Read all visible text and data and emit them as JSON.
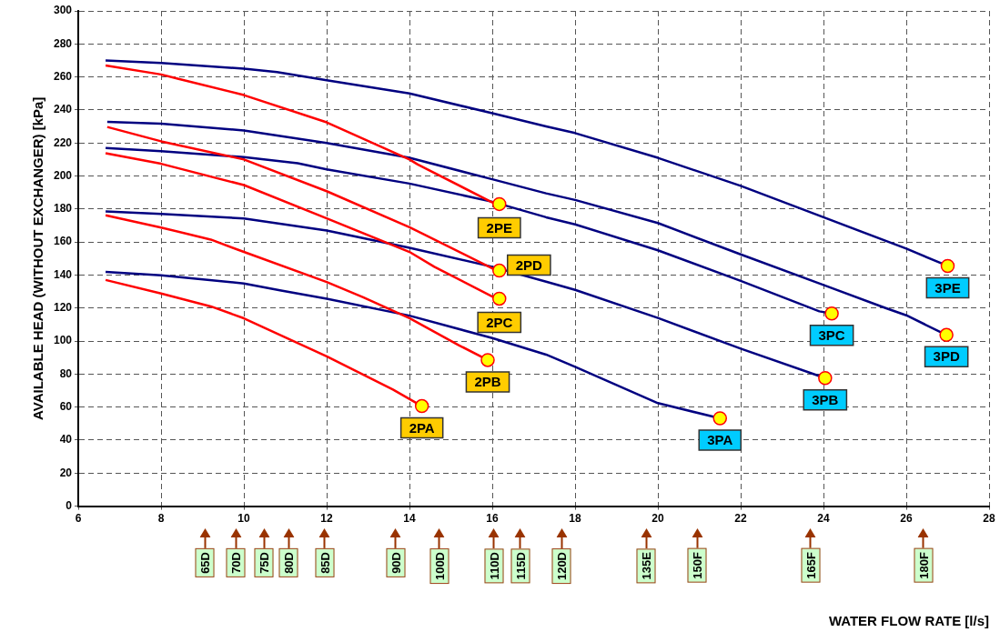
{
  "chart_data": {
    "type": "line",
    "ylabel": "AVAILABLE HEAD (WITHOUT EXCHANGER) [kPa]",
    "xlim": [
      6,
      28
    ],
    "xticks": [
      6,
      8,
      10,
      12,
      14,
      16,
      18,
      20,
      22,
      24,
      26,
      28
    ],
    "ylim": [
      0,
      300
    ],
    "yticks": [
      0,
      20,
      40,
      60,
      80,
      100,
      120,
      140,
      160,
      180,
      200,
      220,
      240,
      260,
      280,
      300
    ],
    "grid": true,
    "legend": false,
    "line_style": "solid",
    "series": [
      {
        "name": "2PE",
        "color": "#ff0000",
        "x": [
          6.66,
          8,
          8.4,
          10,
          12,
          14,
          14.2,
          16,
          16.17
        ],
        "values": [
          267,
          261.5,
          259,
          249,
          232.5,
          210,
          207,
          184,
          183
        ]
      },
      {
        "name": "2PD",
        "color": "#ff0000",
        "x": [
          6.7,
          8,
          10,
          12,
          14,
          16,
          16.17
        ],
        "values": [
          229.7,
          221,
          210,
          190.8,
          169,
          144,
          142.7
        ]
      },
      {
        "name": "2PC",
        "color": "#ff0000",
        "x": [
          6.66,
          8,
          10,
          12,
          14,
          14.6,
          16,
          16.17
        ],
        "values": [
          213.8,
          207.4,
          194.5,
          174.3,
          154,
          145,
          127,
          125.7
        ]
      },
      {
        "name": "2PB",
        "color": "#ff0000",
        "x": [
          6.66,
          8,
          9.2,
          10,
          12,
          12.88,
          14,
          15.2,
          15.89
        ],
        "values": [
          176.2,
          168.8,
          161.5,
          154,
          135.8,
          126.6,
          113.9,
          97.4,
          88.5
        ]
      },
      {
        "name": "2PA",
        "color": "#ff0000",
        "x": [
          6.66,
          8,
          9.2,
          10,
          12,
          13.6,
          14.3
        ],
        "values": [
          137,
          128.8,
          121,
          113.8,
          90.8,
          70.6,
          60.6
        ]
      },
      {
        "name": "3PE",
        "color": "#000080",
        "x": [
          6.66,
          8,
          10,
          10.8,
          12,
          14,
          16,
          17.3,
          18,
          20,
          22,
          24,
          26,
          27
        ],
        "values": [
          270,
          268.5,
          265,
          263,
          258,
          250,
          238,
          230,
          226,
          211,
          194,
          175,
          156,
          145.5
        ]
      },
      {
        "name": "3PD",
        "color": "#000080",
        "x": [
          6.7,
          8,
          10,
          12,
          14,
          16,
          17.3,
          18,
          20,
          22,
          24,
          25.5,
          26,
          26.97
        ],
        "values": [
          232.8,
          231.7,
          227.6,
          220,
          211,
          198,
          189.5,
          185.5,
          171.5,
          152.5,
          134,
          120,
          115.6,
          103.7
        ]
      },
      {
        "name": "3PC",
        "color": "#000080",
        "x": [
          6.66,
          8,
          10,
          11.3,
          12,
          14,
          16,
          17.3,
          18,
          20,
          22,
          23.9,
          24.2
        ],
        "values": [
          216.9,
          215,
          211.4,
          207.7,
          204,
          195.4,
          184.4,
          175,
          170.7,
          155,
          136.5,
          118,
          116.7
        ]
      },
      {
        "name": "3PB",
        "color": "#000080",
        "x": [
          6.66,
          8,
          10,
          12,
          14,
          16,
          17.3,
          18,
          20,
          22,
          24.04
        ],
        "values": [
          178.5,
          177,
          174.3,
          167,
          156.5,
          145,
          136,
          131,
          114,
          95.4,
          77.6
        ]
      },
      {
        "name": "3PA",
        "color": "#000080",
        "x": [
          6.66,
          8,
          10,
          10.9,
          12,
          14,
          16,
          17.3,
          18,
          20,
          21.5
        ],
        "values": [
          141.9,
          139.8,
          134.9,
          130.6,
          125.7,
          115.4,
          101.8,
          91.8,
          84.4,
          62.4,
          53.2
        ]
      }
    ],
    "annotations": [
      "65D",
      "70D",
      "75D",
      "80D",
      "85D",
      "90D",
      "100D",
      "110D",
      "115D",
      "120D",
      "135E",
      "150F",
      "165F",
      "180F",
      "WATER FLOW RATE [l/s]"
    ]
  }
}
